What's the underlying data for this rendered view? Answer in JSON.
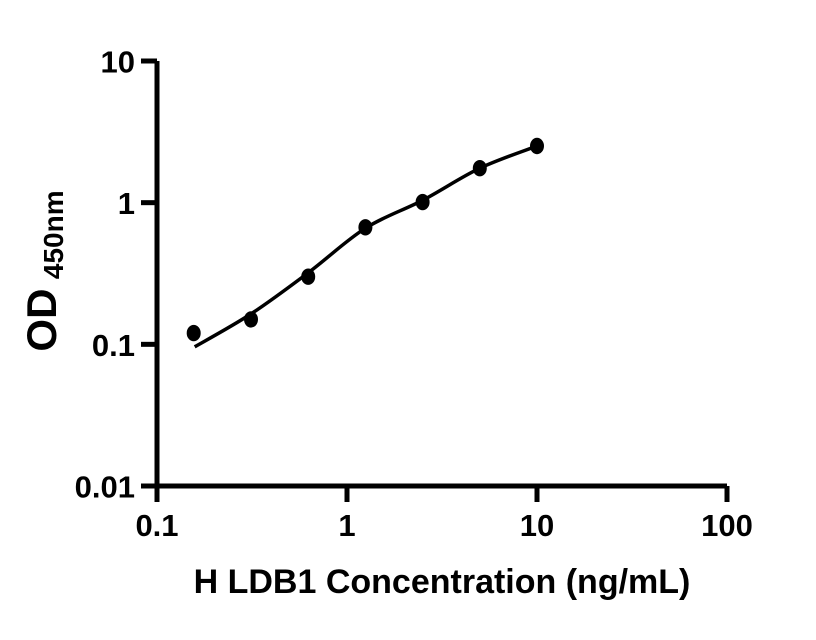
{
  "figure": {
    "background_color": "#ffffff"
  },
  "chart_data": {
    "type": "scatter",
    "title": "",
    "xlabel": "H LDB1 Concentration (ng/mL)",
    "ylabel": "OD450nm",
    "ylabel_main": "OD",
    "ylabel_sub": "450nm",
    "x_scale": "log",
    "y_scale": "log",
    "xlim": [
      0.1,
      100
    ],
    "ylim": [
      0.01,
      10
    ],
    "x_ticks": [
      0.1,
      1,
      10,
      100
    ],
    "x_tick_labels": [
      "0.1",
      "1",
      "10",
      "100"
    ],
    "y_ticks": [
      10,
      1,
      0.1,
      0.01
    ],
    "y_tick_labels": [
      "10",
      "1",
      "0.1",
      "0.01"
    ],
    "grid": false,
    "legend": "none",
    "foreground_color": "#000000",
    "background_color": "#ffffff",
    "series": [
      {
        "name": "standard-data-points",
        "type": "scatter",
        "marker": "filled-ellipse",
        "color": "#000000",
        "x": [
          0.156,
          0.3125,
          0.625,
          1.25,
          2.5,
          5,
          10
        ],
        "y": [
          0.12,
          0.15,
          0.3,
          0.67,
          1.01,
          1.75,
          2.51
        ]
      },
      {
        "name": "fitted-curve",
        "type": "line",
        "color": "#000000",
        "x": [
          0.158,
          0.3125,
          0.625,
          1.25,
          2.5,
          5,
          10
        ],
        "y": [
          0.096,
          0.164,
          0.32,
          0.66,
          1.04,
          1.75,
          2.51
        ]
      }
    ]
  }
}
